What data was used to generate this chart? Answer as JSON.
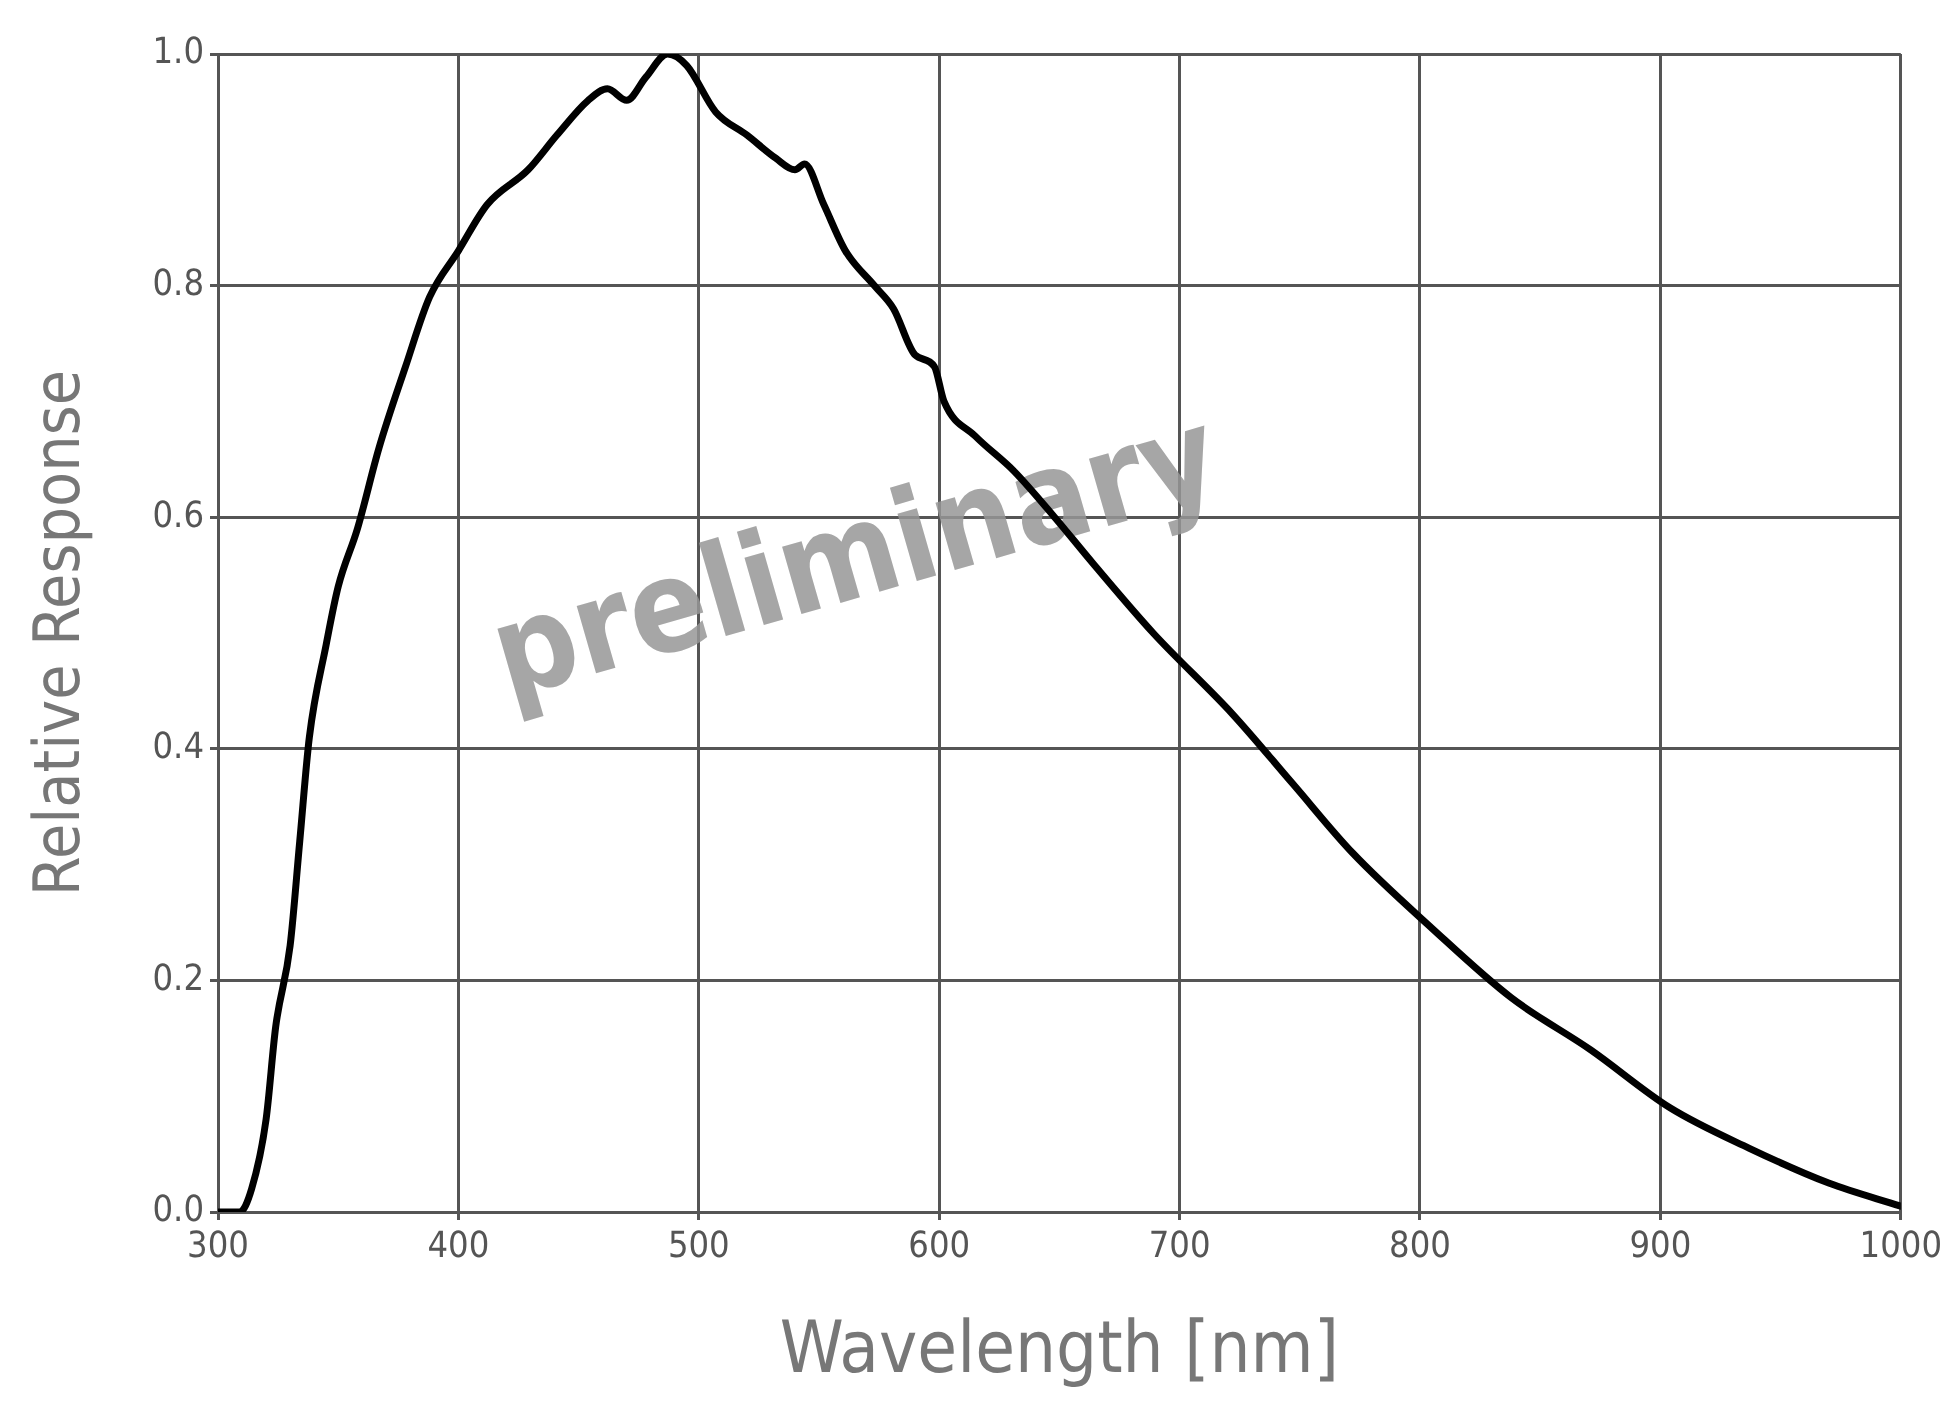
{
  "chart_data": {
    "type": "line",
    "xlabel": "Wavelength [nm]",
    "ylabel": "Relative Response",
    "annotations": [
      "preliminary"
    ],
    "x": [
      300,
      309,
      314,
      320,
      324,
      330,
      334,
      338,
      345,
      350,
      358,
      367,
      378,
      388,
      400,
      412,
      429,
      441,
      454,
      462,
      470,
      478,
      487,
      495,
      507,
      520,
      532,
      540,
      544,
      552,
      561,
      573,
      581,
      590,
      598,
      602,
      615,
      631,
      648,
      664,
      689,
      722,
      747,
      772,
      805,
      838,
      871,
      904,
      937,
      970,
      1000
    ],
    "series": [
      {
        "color": "#000000",
        "values": [
          0.0,
          0.0,
          0.02,
          0.08,
          0.16,
          0.23,
          0.32,
          0.41,
          0.49,
          0.54,
          0.59,
          0.66,
          0.73,
          0.79,
          0.83,
          0.87,
          0.9,
          0.93,
          0.96,
          0.97,
          0.96,
          0.98,
          1.0,
          0.99,
          0.95,
          0.93,
          0.91,
          0.9,
          0.905,
          0.87,
          0.83,
          0.8,
          0.78,
          0.74,
          0.73,
          0.7,
          0.67,
          0.64,
          0.6,
          0.56,
          0.5,
          0.43,
          0.37,
          0.31,
          0.245,
          0.185,
          0.14,
          0.09,
          0.055,
          0.025,
          0.005
        ]
      }
    ],
    "xlim": [
      300,
      1000
    ],
    "xticks": [
      300,
      400,
      500,
      600,
      700,
      800,
      900,
      1000
    ],
    "ylim": [
      0,
      1
    ],
    "yticks": [
      {
        "value": 0,
        "label": "0.0"
      },
      0.2,
      0.4,
      0.6,
      0.8,
      {
        "value": 1,
        "label": "1.0"
      }
    ],
    "grid": true,
    "legend": false,
    "marker": "none",
    "line_style": "solid"
  }
}
